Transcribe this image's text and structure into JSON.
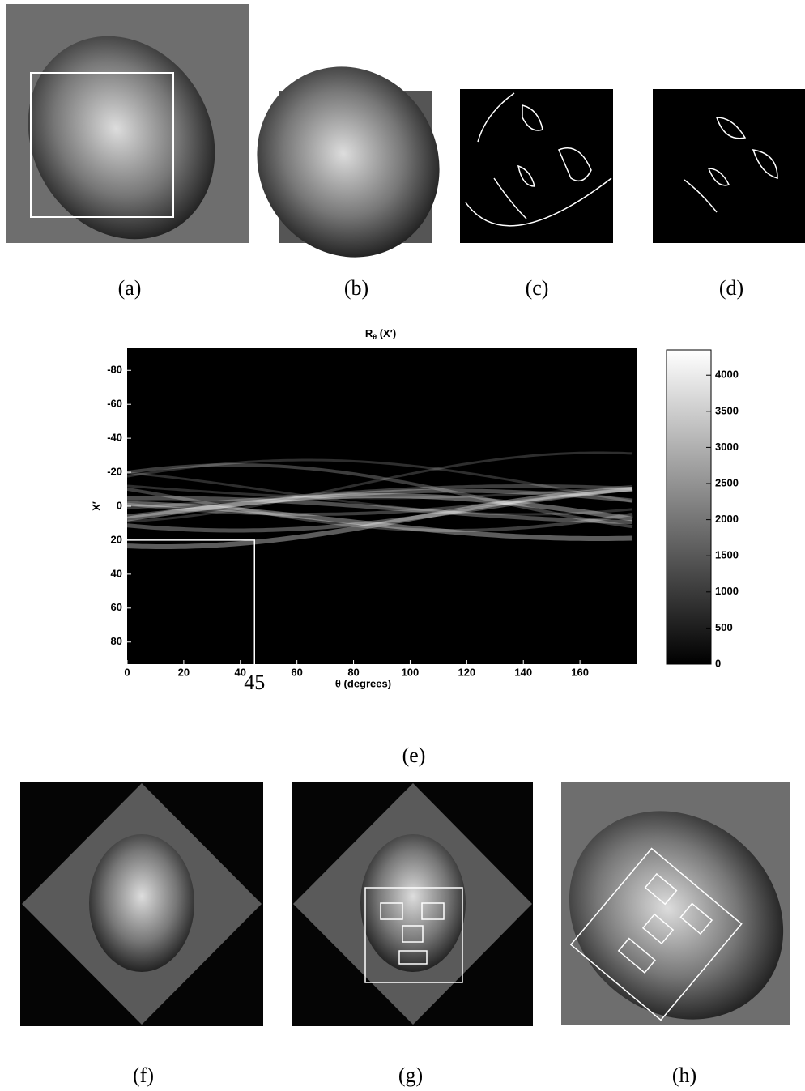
{
  "captions": [
    "(a)",
    "(b)",
    "(c)",
    "(d)",
    "(e)",
    "(f)",
    "(g)",
    "(h)"
  ],
  "radon_plot": {
    "title": [
      "R",
      "θ",
      " (X′)"
    ],
    "y_label": "X′",
    "x_label": "θ (degrees)",
    "xlim": [
      0,
      180
    ],
    "xticks": [
      0,
      20,
      40,
      60,
      80,
      100,
      120,
      140,
      160
    ],
    "ylim": [
      -93,
      93
    ],
    "yticks": [
      -80,
      -60,
      -40,
      -20,
      0,
      20,
      40,
      60,
      80
    ],
    "annotation": {
      "x": 45,
      "y": 20,
      "label": "45"
    },
    "clim": [
      0,
      4350
    ],
    "cticks": [
      0,
      500,
      1000,
      1500,
      2000,
      2500,
      3000,
      3500,
      4000
    ]
  }
}
